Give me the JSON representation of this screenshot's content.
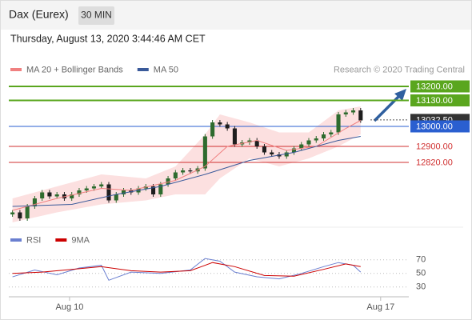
{
  "header": {
    "title": "Dax (Eurex)",
    "timeframe": "30 MIN",
    "timestamp": "Thursday, August 13, 2020 3:44:46 AM CET"
  },
  "chart_data": [
    {
      "type": "candlestick",
      "attribution": "Research © 2020 Trading Central",
      "xlim": [
        -0.5,
        53.5
      ],
      "ylim": [
        12496,
        13248
      ],
      "xticks": [
        {
          "value": 7.7,
          "label": "Aug 10"
        },
        {
          "value": 49.7,
          "label": "Aug 17"
        }
      ],
      "up_color": "#2e6b2e",
      "down_color": "#1e1e1e",
      "x": [
        0,
        1,
        2,
        3,
        4,
        5,
        6,
        7,
        8,
        9,
        10,
        11,
        12,
        13,
        14,
        15,
        16,
        17,
        18,
        19,
        20,
        21,
        22,
        23,
        24,
        25,
        26,
        27,
        28,
        29,
        30,
        31,
        32,
        33,
        34,
        35,
        36,
        37,
        38,
        39,
        40,
        41,
        42,
        43,
        44,
        45,
        46,
        47
      ],
      "open": [
        12560,
        12570,
        12540,
        12600,
        12640,
        12670,
        12650,
        12660,
        12640,
        12660,
        12680,
        12690,
        12700,
        12710,
        12630,
        12660,
        12680,
        12670,
        12690,
        12700,
        12660,
        12710,
        12740,
        12770,
        12780,
        12775,
        12790,
        12950,
        13020,
        13010,
        12990,
        12910,
        12920,
        12930,
        12900,
        12870,
        12860,
        12850,
        12870,
        12890,
        12910,
        12930,
        12940,
        12960,
        12970,
        13060,
        13070,
        13080
      ],
      "high": [
        12582,
        12582,
        12612,
        12652,
        12682,
        12682,
        12672,
        12672,
        12672,
        12692,
        12702,
        12712,
        12722,
        12722,
        12672,
        12692,
        12692,
        12702,
        12712,
        12712,
        12722,
        12752,
        12782,
        12792,
        12792,
        12802,
        12962,
        13032,
        13032,
        13022,
        13002,
        12932,
        12942,
        12942,
        12912,
        12882,
        12872,
        12882,
        12902,
        12922,
        12942,
        12952,
        12972,
        12982,
        13072,
        13082,
        13092,
        13092
      ],
      "low": [
        12548,
        12528,
        12528,
        12588,
        12628,
        12638,
        12638,
        12628,
        12628,
        12648,
        12668,
        12678,
        12688,
        12618,
        12618,
        12648,
        12658,
        12658,
        12678,
        12648,
        12648,
        12698,
        12728,
        12758,
        12763,
        12763,
        12778,
        12938,
        12998,
        12978,
        12898,
        12898,
        12908,
        12888,
        12858,
        12848,
        12838,
        12838,
        12858,
        12878,
        12898,
        12918,
        12928,
        12948,
        12958,
        13048,
        13058,
        13018
      ],
      "close": [
        12570,
        12540,
        12600,
        12640,
        12670,
        12650,
        12660,
        12640,
        12660,
        12680,
        12690,
        12700,
        12710,
        12630,
        12660,
        12680,
        12670,
        12690,
        12700,
        12660,
        12710,
        12740,
        12770,
        12780,
        12775,
        12790,
        12950,
        13020,
        13010,
        12990,
        12910,
        12920,
        12930,
        12900,
        12870,
        12860,
        12850,
        12870,
        12890,
        12910,
        12930,
        12940,
        12960,
        12970,
        13060,
        13070,
        13080,
        13030
      ],
      "series": [
        {
          "name": "MA 20 + Bollinger Bands",
          "color": "#f08080",
          "band_color": "#fbd5d5",
          "x": [
            0,
            6,
            12,
            16,
            22,
            26,
            29,
            33,
            37,
            41,
            45,
            47
          ],
          "values": [
            12580,
            12640,
            12690,
            12680,
            12730,
            12800,
            12900,
            12930,
            12880,
            12900,
            12990,
            13030
          ],
          "band_x": [
            0,
            6,
            12,
            18,
            22,
            26,
            28,
            32,
            36,
            40,
            44,
            47
          ],
          "upper": [
            12640,
            12700,
            12760,
            12740,
            12800,
            12960,
            13060,
            13020,
            12970,
            12970,
            13080,
            13100
          ],
          "lower": [
            12520,
            12570,
            12610,
            12630,
            12660,
            12660,
            12740,
            12840,
            12800,
            12840,
            12900,
            12960
          ]
        },
        {
          "name": "MA 50",
          "color": "#3a5a9a",
          "x": [
            0,
            8,
            14,
            20,
            26,
            32,
            38,
            44,
            47
          ],
          "values": [
            12600,
            12610,
            12660,
            12700,
            12760,
            12830,
            12870,
            12930,
            12950
          ]
        }
      ],
      "levels": [
        {
          "value": 13200,
          "label": "13200.00",
          "color": "#5aa61e"
        },
        {
          "value": 13130,
          "label": "13130.00",
          "color": "#5aa61e"
        },
        {
          "value": 13032.5,
          "label": "13032.50",
          "color": "#333333"
        },
        {
          "value": 13000,
          "label": "13000.00",
          "color": "#2a5fd0"
        },
        {
          "value": 12900,
          "label": "12900.00",
          "color": "#d03030"
        },
        {
          "value": 12820,
          "label": "12820.00",
          "color": "#d03030"
        }
      ]
    },
    {
      "type": "line",
      "xlim": [
        -0.5,
        53.5
      ],
      "ylim": [
        18,
        98
      ],
      "yticks": [
        70,
        50,
        30
      ],
      "series": [
        {
          "name": "RSI",
          "color": "#6a7fd0",
          "x": [
            0,
            3,
            6,
            9,
            12,
            13,
            16,
            20,
            24,
            26,
            28,
            30,
            33,
            36,
            39,
            42,
            44,
            46,
            47
          ],
          "values": [
            45,
            55,
            48,
            58,
            62,
            40,
            52,
            50,
            55,
            72,
            68,
            52,
            45,
            42,
            50,
            60,
            66,
            62,
            52
          ]
        },
        {
          "name": "9MA",
          "color": "#cc0000",
          "x": [
            0,
            4,
            8,
            12,
            16,
            20,
            24,
            27,
            30,
            34,
            38,
            42,
            45,
            47
          ],
          "values": [
            50,
            52,
            56,
            60,
            54,
            52,
            54,
            66,
            60,
            47,
            46,
            56,
            64,
            60
          ]
        }
      ]
    }
  ]
}
